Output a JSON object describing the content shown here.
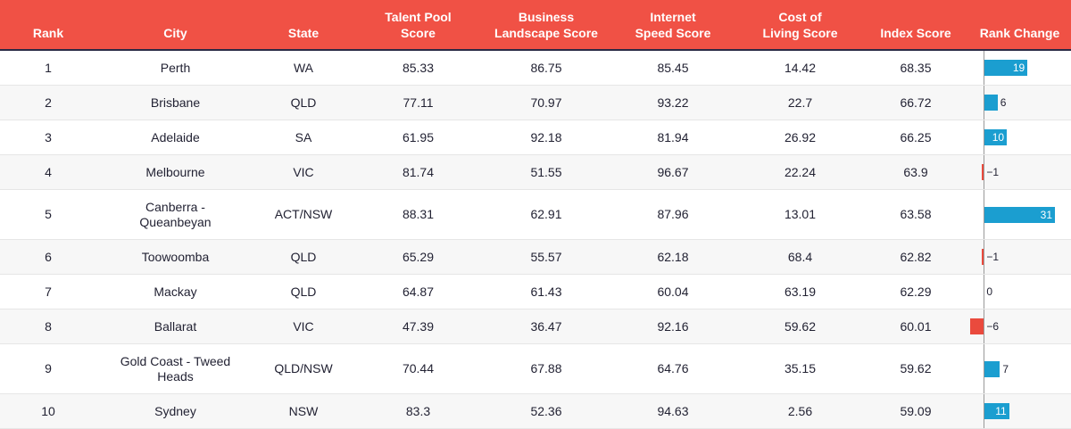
{
  "chart_data": {
    "type": "table",
    "columns": [
      "Rank",
      "City",
      "State",
      "Talent Pool Score",
      "Business Landscape Score",
      "Internet Speed Score",
      "Cost of Living Score",
      "Index Score",
      "Rank Change"
    ],
    "header": {
      "rank": "Rank",
      "city": "City",
      "state": "State",
      "talent_a": "Talent Pool",
      "talent_b": "Score",
      "business_a": "Business",
      "business_b": "Landscape Score",
      "internet_a": "Internet",
      "internet_b": "Speed Score",
      "cost_a": "Cost of",
      "cost_b": "Living Score",
      "index": "Index Score",
      "change": "Rank Change"
    },
    "rows": [
      {
        "rank": "1",
        "city": [
          "Perth"
        ],
        "state": "WA",
        "talent": "85.33",
        "business": "86.75",
        "internet": "85.45",
        "cost": "14.42",
        "index": "68.35",
        "change": 19,
        "change_label": "19"
      },
      {
        "rank": "2",
        "city": [
          "Brisbane"
        ],
        "state": "QLD",
        "talent": "77.11",
        "business": "70.97",
        "internet": "93.22",
        "cost": "22.7",
        "index": "66.72",
        "change": 6,
        "change_label": "6"
      },
      {
        "rank": "3",
        "city": [
          "Adelaide"
        ],
        "state": "SA",
        "talent": "61.95",
        "business": "92.18",
        "internet": "81.94",
        "cost": "26.92",
        "index": "66.25",
        "change": 10,
        "change_label": "10"
      },
      {
        "rank": "4",
        "city": [
          "Melbourne"
        ],
        "state": "VIC",
        "talent": "81.74",
        "business": "51.55",
        "internet": "96.67",
        "cost": "22.24",
        "index": "63.9",
        "change": -1,
        "change_label": "−1"
      },
      {
        "rank": "5",
        "city": [
          "Canberra -",
          "Queanbeyan"
        ],
        "state": "ACT/NSW",
        "talent": "88.31",
        "business": "62.91",
        "internet": "87.96",
        "cost": "13.01",
        "index": "63.58",
        "change": 31,
        "change_label": "31"
      },
      {
        "rank": "6",
        "city": [
          "Toowoomba"
        ],
        "state": "QLD",
        "talent": "65.29",
        "business": "55.57",
        "internet": "62.18",
        "cost": "68.4",
        "index": "62.82",
        "change": -1,
        "change_label": "−1"
      },
      {
        "rank": "7",
        "city": [
          "Mackay"
        ],
        "state": "QLD",
        "talent": "64.87",
        "business": "61.43",
        "internet": "60.04",
        "cost": "63.19",
        "index": "62.29",
        "change": 0,
        "change_label": "0"
      },
      {
        "rank": "8",
        "city": [
          "Ballarat"
        ],
        "state": "VIC",
        "talent": "47.39",
        "business": "36.47",
        "internet": "92.16",
        "cost": "59.62",
        "index": "60.01",
        "change": -6,
        "change_label": "−6"
      },
      {
        "rank": "9",
        "city": [
          "Gold Coast - Tweed",
          "Heads"
        ],
        "state": "QLD/NSW",
        "talent": "70.44",
        "business": "67.88",
        "internet": "64.76",
        "cost": "35.15",
        "index": "59.62",
        "change": 7,
        "change_label": "7"
      },
      {
        "rank": "10",
        "city": [
          "Sydney"
        ],
        "state": "NSW",
        "talent": "83.3",
        "business": "52.36",
        "internet": "94.63",
        "cost": "2.56",
        "index": "59.09",
        "change": 11,
        "change_label": "11"
      }
    ],
    "change_range": [
      -6,
      31
    ],
    "colors": {
      "header": "#f05145",
      "positive": "#1b9ed0",
      "negative": "#ea4a3d"
    }
  }
}
